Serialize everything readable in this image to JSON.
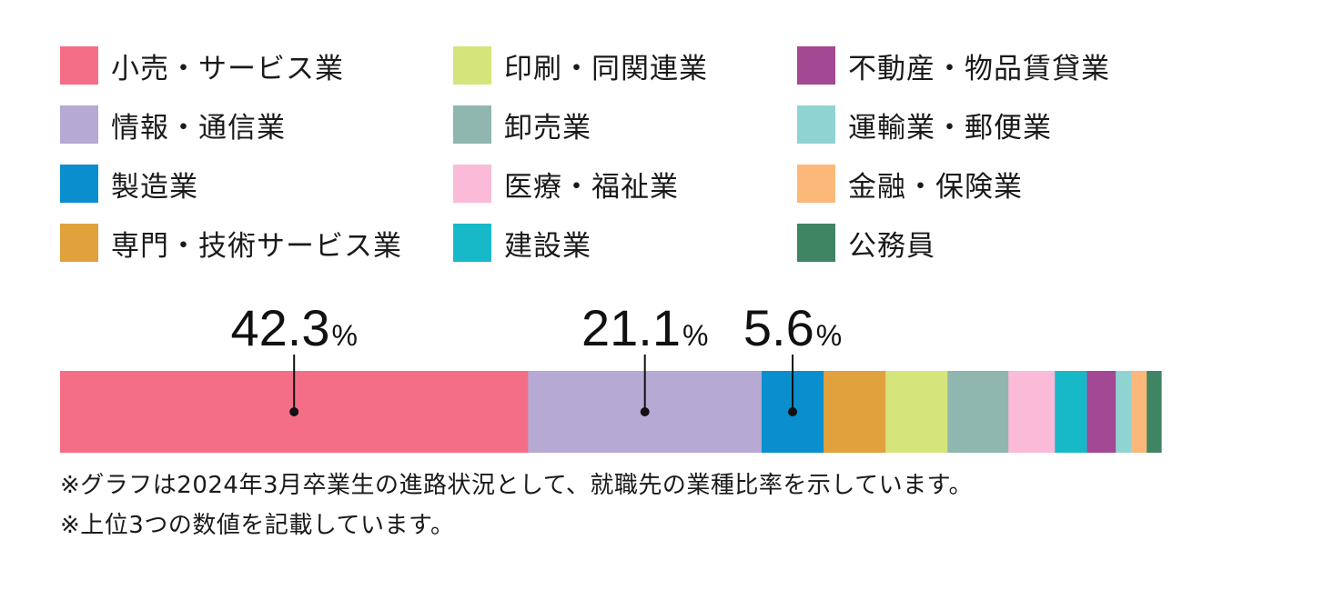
{
  "chart_data": {
    "type": "bar",
    "orientation": "horizontal-stacked-100",
    "categories": [
      "小売・サービス業",
      "情報・通信業",
      "製造業",
      "専門・技術サービス業",
      "印刷・同関連業",
      "卸売業",
      "医療・福祉業",
      "建設業",
      "不動産・物品賃貸業",
      "運輸業・郵便業",
      "金融・保険業",
      "公務員"
    ],
    "values": [
      42.3,
      21.1,
      5.6,
      5.6,
      5.6,
      5.5,
      4.2,
      2.9,
      2.6,
      1.4,
      1.4,
      1.3
    ],
    "colors": [
      "#f56e88",
      "#b6a9d4",
      "#0b8ecd",
      "#e1a23d",
      "#d6e57b",
      "#8fb7b0",
      "#fbbad7",
      "#17b9c9",
      "#a34892",
      "#8fd3d2",
      "#fbb879",
      "#3f8463"
    ],
    "data_labels": [
      {
        "category": "小売・サービス業",
        "number": "42.3",
        "unit": "%"
      },
      {
        "category": "情報・通信業",
        "number": "21.1",
        "unit": "%"
      },
      {
        "category": "製造業",
        "number": "5.6",
        "unit": "%"
      }
    ],
    "legend_position": "top",
    "grid": false
  },
  "notes": [
    "※グラフは2024年3月卒業生の進路状況として、就職先の業種比率を示しています。",
    "※上位3つの数値を記載しています。"
  ]
}
